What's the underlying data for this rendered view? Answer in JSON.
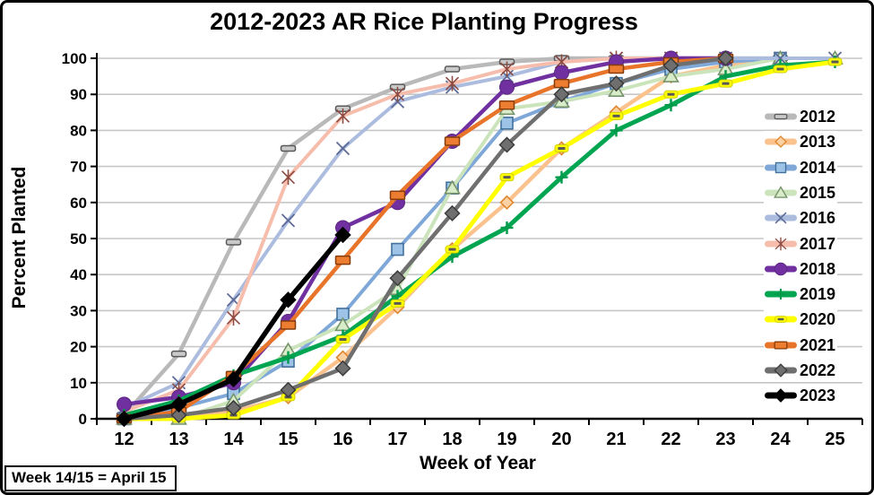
{
  "note": "Week 14/15 = April 15",
  "chart_data": {
    "type": "line",
    "title": "2012-2023 AR Rice Planting Progress",
    "xlabel": "Week of Year",
    "ylabel": "Percent Planted",
    "x_ticks": [
      12,
      13,
      14,
      15,
      16,
      17,
      18,
      19,
      20,
      21,
      22,
      23,
      24,
      25
    ],
    "y_ticks": [
      0,
      10,
      20,
      30,
      40,
      50,
      60,
      70,
      80,
      90,
      100
    ],
    "ylim": [
      0,
      100
    ],
    "grid": true,
    "legend_position": "right-inside",
    "gridline_color": "#c7c7c7",
    "axis_color": "#000000",
    "series": [
      {
        "name": "2012",
        "marker": "dash",
        "color": "#b9b9b9",
        "width": 4.5,
        "x": [
          12,
          13,
          14,
          15,
          16,
          17,
          18,
          19,
          20,
          21,
          22,
          23,
          24
        ],
        "values": [
          1,
          18,
          49,
          75,
          86,
          92,
          97,
          99,
          100,
          100,
          100,
          100,
          100
        ]
      },
      {
        "name": "2013",
        "marker": "diamond",
        "color": "#fbc28e",
        "width": 4.5,
        "x": [
          12,
          13,
          14,
          15,
          16,
          17,
          18,
          19,
          20,
          21,
          22,
          23,
          24
        ],
        "values": [
          0,
          1,
          2,
          6,
          17,
          31,
          47,
          60,
          75,
          85,
          95,
          98,
          100
        ]
      },
      {
        "name": "2014",
        "marker": "square",
        "color": "#7fa8d9",
        "width": 4,
        "x": [
          12,
          13,
          14,
          15,
          16,
          17,
          18,
          19,
          20,
          21,
          22,
          23,
          24
        ],
        "values": [
          0,
          3,
          7,
          16,
          29,
          47,
          64,
          82,
          88,
          93,
          97,
          99,
          100
        ]
      },
      {
        "name": "2015",
        "marker": "triangle",
        "color": "#cbe4bb",
        "width": 4,
        "x": [
          12,
          13,
          14,
          15,
          16,
          17,
          18,
          19,
          20,
          21,
          22,
          23,
          24,
          25
        ],
        "values": [
          0,
          0,
          5,
          19,
          26,
          36,
          64,
          86,
          88,
          91,
          95,
          97,
          100,
          100
        ]
      },
      {
        "name": "2016",
        "marker": "x",
        "color": "#abbcdf",
        "width": 4,
        "x": [
          12,
          13,
          14,
          15,
          16,
          17,
          18,
          19,
          20,
          21,
          22,
          23,
          24,
          25
        ],
        "values": [
          3,
          10,
          33,
          55,
          75,
          88,
          92,
          95,
          99,
          100,
          100,
          100,
          100,
          100
        ]
      },
      {
        "name": "2017",
        "marker": "asterisk",
        "color": "#f6bdac",
        "width": 4,
        "x": [
          12,
          13,
          14,
          15,
          16,
          17,
          18,
          19,
          20,
          21,
          22
        ],
        "values": [
          2,
          8,
          28,
          67,
          84,
          90,
          93,
          97,
          99,
          100,
          100
        ]
      },
      {
        "name": "2018",
        "marker": "circle",
        "color": "#7030a0",
        "width": 4.5,
        "x": [
          12,
          13,
          14,
          15,
          16,
          17,
          18,
          19,
          20,
          21,
          22,
          23
        ],
        "values": [
          4,
          6,
          10,
          27,
          53,
          60,
          77,
          92,
          96,
          99,
          100,
          100
        ]
      },
      {
        "name": "2019",
        "marker": "plus",
        "color": "#00a551",
        "width": 5,
        "x": [
          12,
          13,
          14,
          15,
          16,
          17,
          18,
          19,
          20,
          21,
          22,
          23,
          24,
          25
        ],
        "values": [
          1,
          5,
          12,
          17,
          23,
          34,
          45,
          53,
          67,
          80,
          87,
          95,
          98,
          99
        ]
      },
      {
        "name": "2020",
        "marker": "dash-center",
        "color": "#ffff00",
        "width": 5,
        "x": [
          12,
          13,
          14,
          15,
          16,
          17,
          18,
          19,
          20,
          21,
          22,
          23,
          24,
          25
        ],
        "values": [
          0,
          0,
          1,
          6,
          22,
          32,
          47,
          67,
          75,
          84,
          90,
          93,
          97,
          99
        ]
      },
      {
        "name": "2021",
        "marker": "rect",
        "color": "#e8742a",
        "width": 4.5,
        "x": [
          12,
          13,
          14,
          15,
          16,
          17,
          18,
          19,
          20,
          21,
          22,
          23
        ],
        "values": [
          0,
          2,
          12,
          26,
          44,
          62,
          77,
          87,
          93,
          97,
          99,
          100
        ]
      },
      {
        "name": "2022",
        "marker": "diamond-solid",
        "color": "#6f6f6f",
        "width": 4.5,
        "x": [
          12,
          13,
          14,
          15,
          16,
          17,
          18,
          19,
          20,
          21,
          22,
          23
        ],
        "values": [
          0,
          1,
          3,
          8,
          14,
          39,
          57,
          76,
          90,
          93,
          98,
          100
        ]
      },
      {
        "name": "2023",
        "marker": "diamond-black",
        "color": "#000000",
        "width": 5.5,
        "x": [
          12,
          13,
          14,
          15,
          16
        ],
        "values": [
          0,
          4,
          11,
          33,
          51
        ]
      }
    ]
  }
}
